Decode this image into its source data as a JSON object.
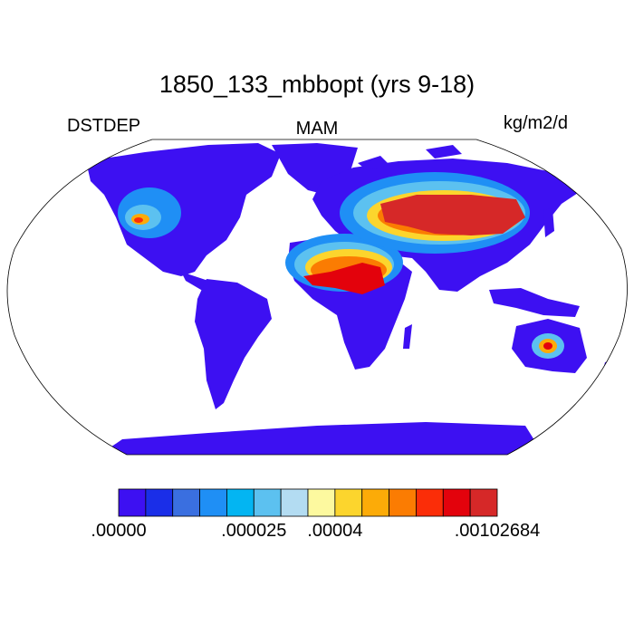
{
  "title": "1850_133_mbbopt (yrs 9-18)",
  "left_label": "DSTDEP",
  "center_label": "MAM",
  "right_label": "kg/m2/d",
  "colorbar": {
    "colors": [
      "#3d10f2",
      "#1a2ee8",
      "#3a6fe0",
      "#1f8ff5",
      "#03b5f2",
      "#5cc1f0",
      "#b3dcf2",
      "#fdf99f",
      "#fcd52d",
      "#fcab08",
      "#fb7c02",
      "#fb2d08",
      "#e3020c",
      "#d62828"
    ],
    "labels": [
      {
        "text": ".00000",
        "boundary": 0
      },
      {
        "text": ".000025",
        "boundary": 5
      },
      {
        "text": ".00004",
        "boundary": 8
      },
      {
        "text": ".00102684",
        "boundary": 14
      }
    ]
  },
  "map": {
    "projection": "robinson",
    "land_color": "#3d10f2",
    "ocean_color": "#ffffff"
  }
}
